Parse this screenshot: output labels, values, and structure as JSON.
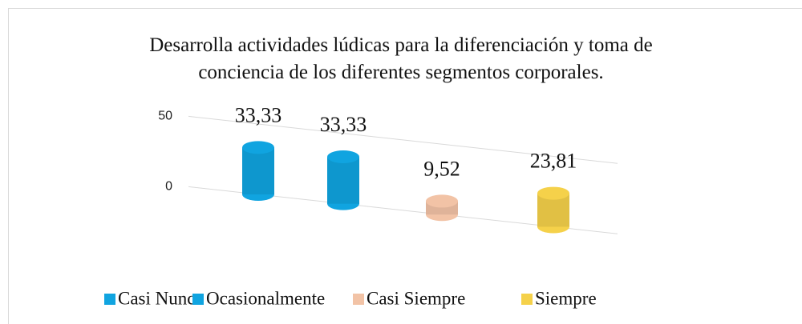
{
  "chart_data": {
    "type": "bar",
    "title": "Desarrolla actividades lúdicas para la diferenciación y toma de conciencia de los diferentes segmentos corporales.",
    "series": [
      {
        "name": "Casi Nunca",
        "color": "#10a4e0",
        "values": [
          33.33
        ],
        "value_labels": [
          "33,33"
        ]
      },
      {
        "name": "Ocasionalmente",
        "color": "#10a4e0",
        "values": [
          33.33
        ],
        "value_labels": [
          "33,33"
        ]
      },
      {
        "name": "Casi Siempre",
        "color": "#f2c3a6",
        "values": [
          9.52
        ],
        "value_labels": [
          "9,52"
        ]
      },
      {
        "name": "Siempre",
        "color": "#f5d14a",
        "values": [
          23.81
        ],
        "value_labels": [
          "23,81"
        ]
      }
    ],
    "ylim": [
      0,
      50
    ],
    "yticks": [
      0,
      50
    ],
    "grid": true,
    "legend": "bottom"
  }
}
